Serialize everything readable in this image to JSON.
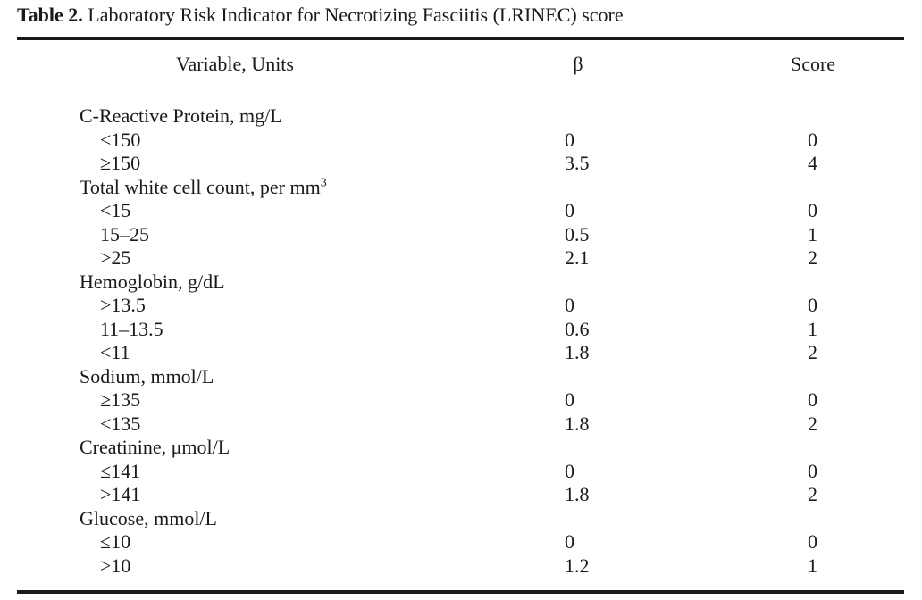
{
  "caption": {
    "label": "Table 2.",
    "title": "Laboratory Risk Indicator for Necrotizing Fasciitis (LRINEC) score"
  },
  "table": {
    "headers": {
      "variable": "Variable, Units",
      "beta": "β",
      "score": "Score"
    },
    "groups": [
      {
        "name": "C-Reactive Protein, mg/L",
        "levels": [
          {
            "label": "<150",
            "beta": "0",
            "score": "0"
          },
          {
            "label": "≥150",
            "beta": "3.5",
            "score": "4"
          }
        ]
      },
      {
        "name": "Total white cell count, per mm",
        "name_sup": "3",
        "levels": [
          {
            "label": "<15",
            "beta": "0",
            "score": "0"
          },
          {
            "label": "15–25",
            "beta": "0.5",
            "score": "1"
          },
          {
            "label": ">25",
            "beta": "2.1",
            "score": "2"
          }
        ]
      },
      {
        "name": "Hemoglobin, g/dL",
        "levels": [
          {
            "label": ">13.5",
            "beta": "0",
            "score": "0"
          },
          {
            "label": "11–13.5",
            "beta": "0.6",
            "score": "1"
          },
          {
            "label": "<11",
            "beta": "1.8",
            "score": "2"
          }
        ]
      },
      {
        "name": "Sodium, mmol/L",
        "levels": [
          {
            "label": "≥135",
            "beta": "0",
            "score": "0"
          },
          {
            "label": "<135",
            "beta": "1.8",
            "score": "2"
          }
        ]
      },
      {
        "name": "Creatinine, μmol/L",
        "levels": [
          {
            "label": "≤141",
            "beta": "0",
            "score": "0"
          },
          {
            "label": ">141",
            "beta": "1.8",
            "score": "2"
          }
        ]
      },
      {
        "name": "Glucose, mmol/L",
        "levels": [
          {
            "label": "≤10",
            "beta": "0",
            "score": "0"
          },
          {
            "label": ">10",
            "beta": "1.2",
            "score": "1"
          }
        ]
      }
    ]
  }
}
